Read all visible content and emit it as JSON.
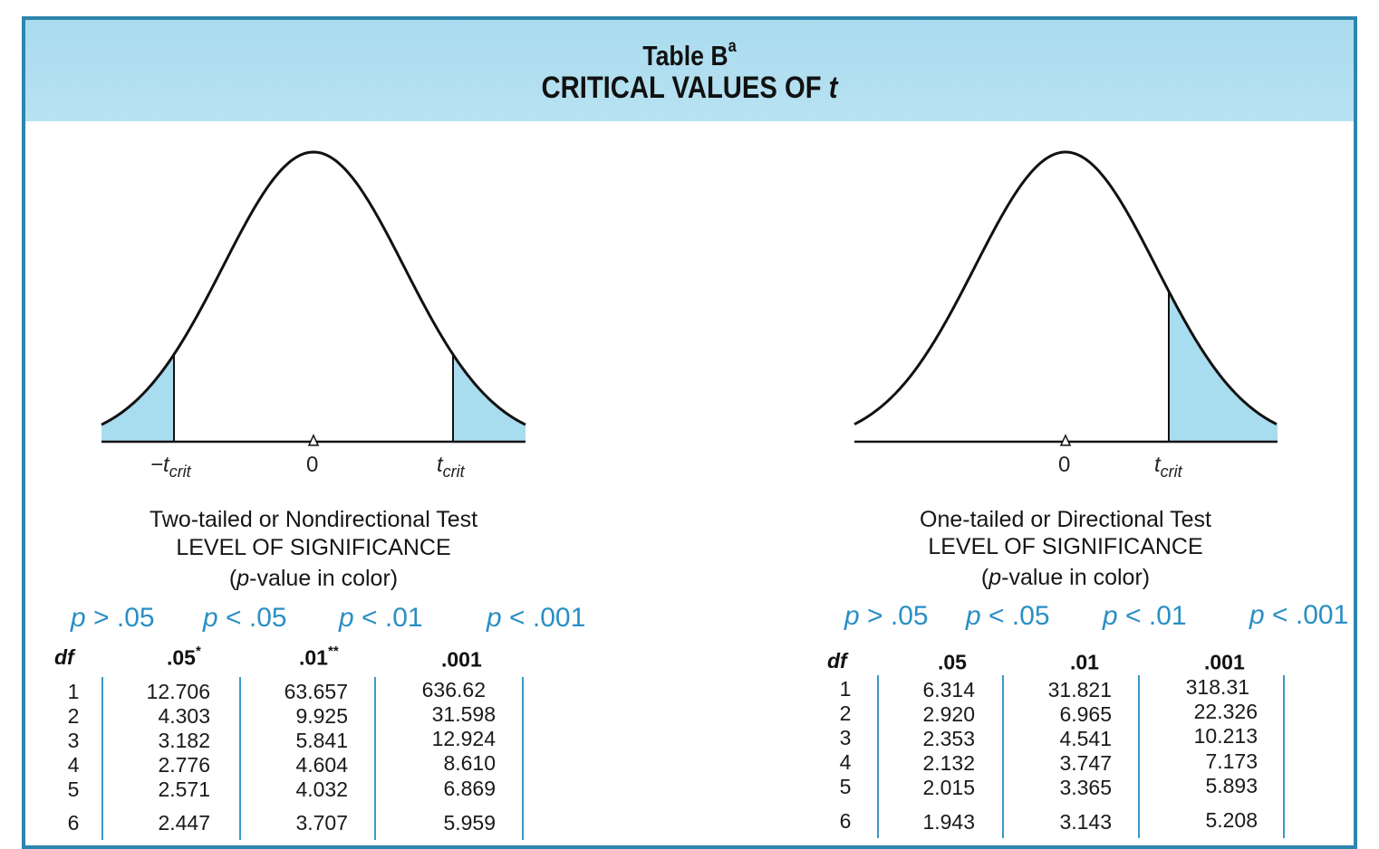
{
  "header": {
    "table_label": "Table B",
    "table_label_sup": "a",
    "title_prefix": "CRITICAL VALUES OF",
    "title_variable": "t"
  },
  "colors": {
    "frame": "#2d86ae",
    "header_band": "#b3e0f1",
    "tail_fill": "#a8dcef",
    "p_value_text": "#2a8fc4",
    "column_rule": "#3a9ac8"
  },
  "two_tailed": {
    "curve_labels": {
      "left_sign": "−t",
      "left_sub": "crit",
      "zero": "0",
      "right": "t",
      "right_sub": "crit"
    },
    "caption_line_1": "Two-tailed or Nondirectional Test",
    "caption_line_2": "LEVEL OF SIGNIFICANCE",
    "caption_line_3_open": "(",
    "caption_line_3_italic": "p",
    "caption_line_3_rest": "-value in color)",
    "p_values": [
      {
        "var": "p",
        "rest": " > .05"
      },
      {
        "var": "p",
        "rest": " < .05"
      },
      {
        "var": "p",
        "rest": " < .01"
      },
      {
        "var": "p",
        "rest": " < .001"
      }
    ],
    "columns": [
      {
        "label": "df",
        "sup": ""
      },
      {
        "label": ".05",
        "sup": "*"
      },
      {
        "label": ".01",
        "sup": "**"
      },
      {
        "label": ".001",
        "sup": ""
      }
    ],
    "rows": [
      {
        "df": "1",
        "v05": "12.706",
        "v01": "63.657",
        "v001": "636.62"
      },
      {
        "df": "2",
        "v05": "4.303",
        "v01": "9.925",
        "v001": "31.598"
      },
      {
        "df": "3",
        "v05": "3.182",
        "v01": "5.841",
        "v001": "12.924"
      },
      {
        "df": "4",
        "v05": "2.776",
        "v01": "4.604",
        "v001": "8.610"
      },
      {
        "df": "5",
        "v05": "2.571",
        "v01": "4.032",
        "v001": "6.869"
      },
      {
        "df": "6",
        "v05": "2.447",
        "v01": "3.707",
        "v001": "5.959"
      }
    ]
  },
  "one_tailed": {
    "curve_labels": {
      "zero": "0",
      "right": "t",
      "right_sub": "crit"
    },
    "caption_line_1": "One-tailed or Directional Test",
    "caption_line_2": "LEVEL OF SIGNIFICANCE",
    "caption_line_3_open": "(",
    "caption_line_3_italic": "p",
    "caption_line_3_rest": "-value in color)",
    "p_values": [
      {
        "var": "p",
        "rest": " > .05"
      },
      {
        "var": "p",
        "rest": " < .05"
      },
      {
        "var": "p",
        "rest": " < .01"
      },
      {
        "var": "p",
        "rest": " < .001"
      }
    ],
    "columns": [
      {
        "label": "df",
        "sup": ""
      },
      {
        "label": ".05",
        "sup": ""
      },
      {
        "label": ".01",
        "sup": ""
      },
      {
        "label": ".001",
        "sup": ""
      }
    ],
    "rows": [
      {
        "df": "1",
        "v05": "6.314",
        "v01": "31.821",
        "v001": "318.31"
      },
      {
        "df": "2",
        "v05": "2.920",
        "v01": "6.965",
        "v001": "22.326"
      },
      {
        "df": "3",
        "v05": "2.353",
        "v01": "4.541",
        "v001": "10.213"
      },
      {
        "df": "4",
        "v05": "2.132",
        "v01": "3.747",
        "v001": "7.173"
      },
      {
        "df": "5",
        "v05": "2.015",
        "v01": "3.365",
        "v001": "5.893"
      },
      {
        "df": "6",
        "v05": "1.943",
        "v01": "3.143",
        "v001": "5.208"
      }
    ]
  }
}
